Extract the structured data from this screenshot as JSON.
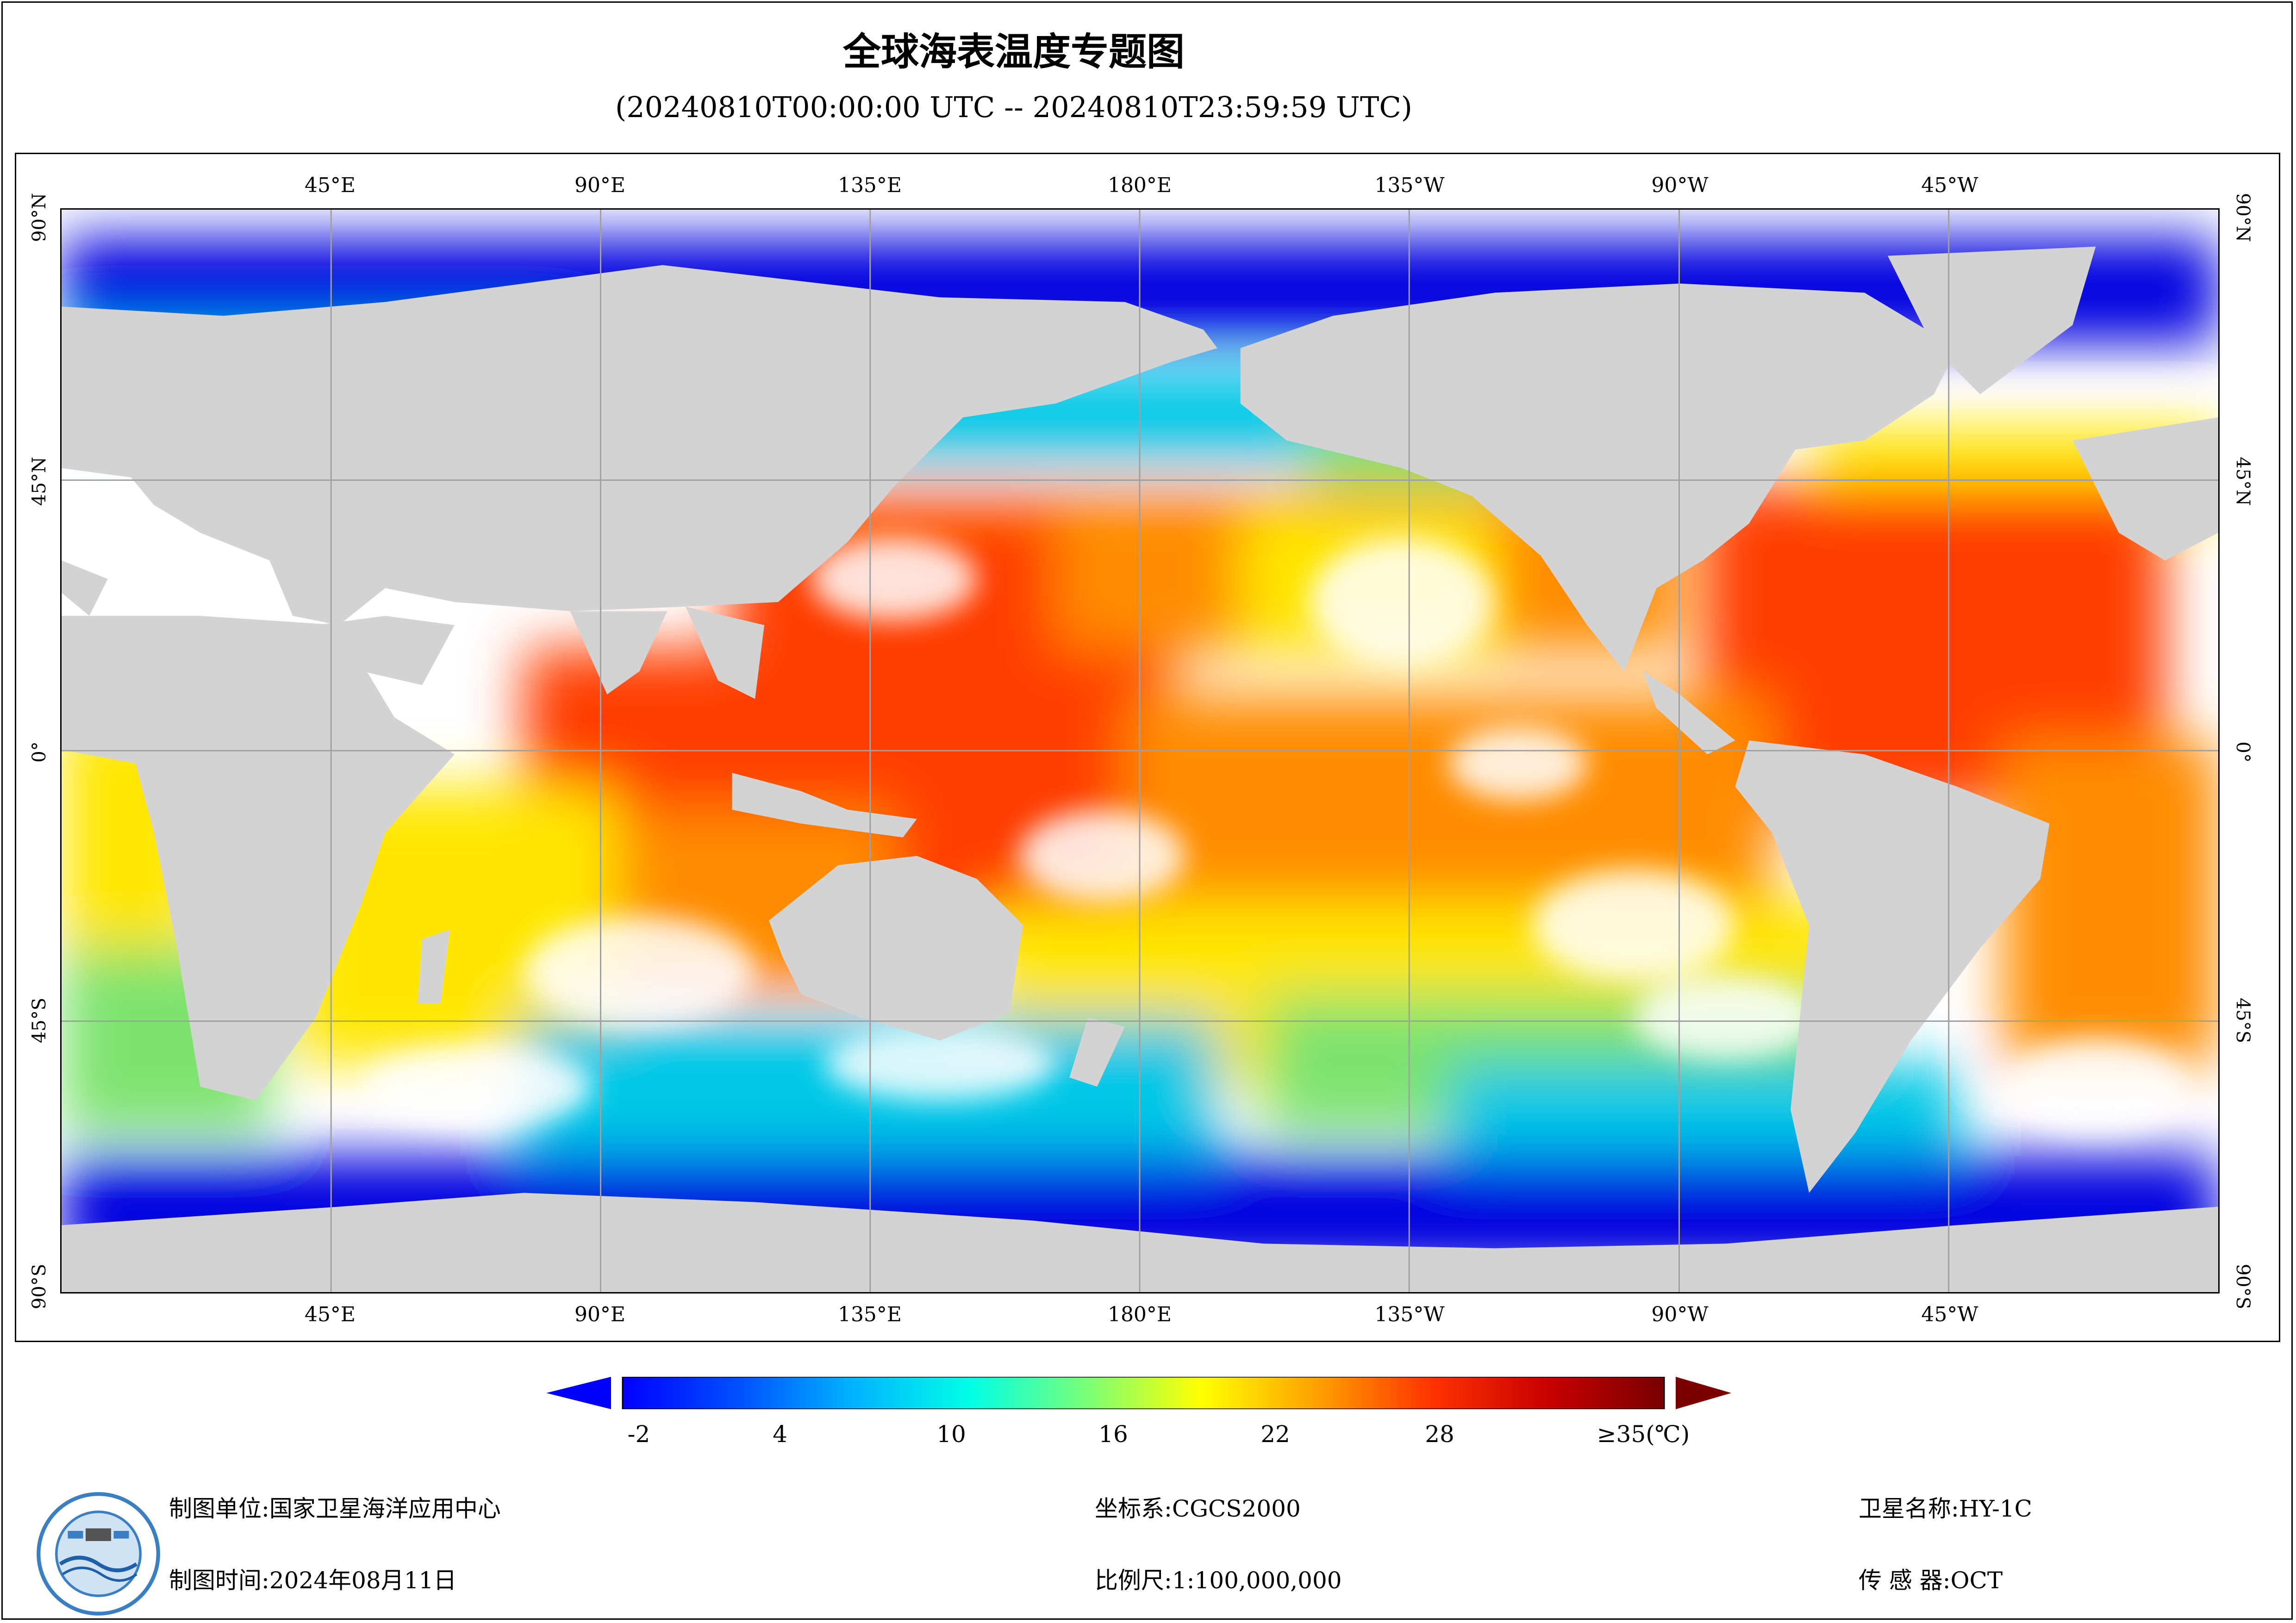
{
  "title": "全球海表温度专题图",
  "subtitle": "(20240810T00:00:00 UTC -- 20240810T23:59:59 UTC)",
  "map": {
    "lon_labels": [
      "45°E",
      "90°E",
      "135°E",
      "180°E",
      "135°W",
      "90°W",
      "45°W"
    ],
    "lat_labels": [
      "90°N",
      "45°N",
      "0°",
      "45°S",
      "90°S"
    ],
    "colors": {
      "land": "#d3d3d3",
      "cloud": "#ffffff",
      "grid": "#a0a0a0",
      "cold": "#0000e0",
      "cool": "#00c8e6",
      "mild": "#7de36e",
      "warm": "#ffe600",
      "hot": "#ff8c00",
      "very_hot": "#ff3c00",
      "extreme": "#d21414"
    }
  },
  "colorbar": {
    "labels": [
      "-2",
      "4",
      "10",
      "16",
      "22",
      "28",
      "≥35(℃)"
    ],
    "stops": [
      "#0000ff",
      "#0050ff",
      "#00b4ff",
      "#00ffe6",
      "#78ff78",
      "#ffff00",
      "#ffa000",
      "#ff3200",
      "#c80000",
      "#780000"
    ],
    "under_color": "#0000ff",
    "over_color": "#7a0000"
  },
  "info": {
    "org": "制图单位:国家卫星海洋应用中心",
    "date": "制图时间:2024年08月11日",
    "crs": "坐标系:CGCS2000",
    "scale": "比例尺:1:100,000,000",
    "satellite": "卫星名称:HY-1C",
    "sensor": "传  感  器:OCT"
  },
  "logo": {
    "icon": "nsoas-logo-icon"
  }
}
